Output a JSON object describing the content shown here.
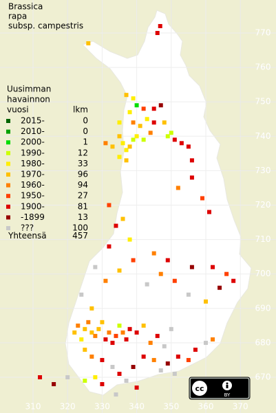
{
  "title": [
    "Brassica",
    "rapa",
    "subsp. campestris"
  ],
  "legend": {
    "header": [
      "Uusimman",
      "havainnon"
    ],
    "col_year": "vuosi",
    "col_count": "lkm",
    "rows": [
      {
        "label": "2015-",
        "count": 0,
        "color": "#006400"
      },
      {
        "label": "2010-",
        "count": 0,
        "color": "#00a000"
      },
      {
        "label": "2000-",
        "count": 1,
        "color": "#00dd00"
      },
      {
        "label": "1990-",
        "count": 12,
        "color": "#ccff00"
      },
      {
        "label": "1980-",
        "count": 33,
        "color": "#ffee00"
      },
      {
        "label": "1970-",
        "count": 96,
        "color": "#ffc000"
      },
      {
        "label": "1960-",
        "count": 94,
        "color": "#ff8000"
      },
      {
        "label": "1950-",
        "count": 27,
        "color": "#ff4000"
      },
      {
        "label": "1900-",
        "count": 81,
        "color": "#dd0000"
      },
      {
        "label": "-1899",
        "count": 13,
        "color": "#960000"
      },
      {
        "label": "???",
        "count": 100,
        "color": "#c8c8c8"
      }
    ],
    "total_label": "Yhteensä",
    "total": 457
  },
  "northing_ticks": [
    770,
    760,
    750,
    740,
    730,
    720,
    710,
    700,
    690,
    680,
    670
  ],
  "easting_ticks": [
    310,
    320,
    330,
    340,
    350,
    360,
    370
  ],
  "license": {
    "left": "cc",
    "right": "BY"
  },
  "points": [
    [
      326,
      767,
      5
    ],
    [
      346,
      770,
      8
    ],
    [
      346.8,
      772,
      8
    ],
    [
      337,
      752,
      5
    ],
    [
      339,
      751,
      4
    ],
    [
      340,
      749,
      2
    ],
    [
      338,
      747,
      4
    ],
    [
      342,
      748,
      7
    ],
    [
      345,
      748,
      8
    ],
    [
      347,
      749,
      9
    ],
    [
      335,
      744,
      4
    ],
    [
      339,
      744,
      6
    ],
    [
      341,
      743,
      5
    ],
    [
      343,
      745,
      4
    ],
    [
      345,
      744,
      8
    ],
    [
      335,
      740,
      5
    ],
    [
      336,
      738,
      4
    ],
    [
      337,
      736,
      4
    ],
    [
      338,
      737,
      5
    ],
    [
      339,
      739,
      3
    ],
    [
      340,
      740,
      4
    ],
    [
      342,
      739,
      3
    ],
    [
      335,
      734,
      4
    ],
    [
      337,
      733,
      5
    ],
    [
      344,
      741,
      6
    ],
    [
      349,
      740,
      3
    ],
    [
      350,
      741,
      3
    ],
    [
      351,
      739,
      8
    ],
    [
      353,
      738,
      8
    ],
    [
      355,
      737,
      8
    ],
    [
      356,
      733,
      8
    ],
    [
      348,
      744,
      5
    ],
    [
      333,
      737,
      5
    ],
    [
      331,
      738,
      6
    ],
    [
      352,
      725,
      6
    ],
    [
      356,
      728,
      8
    ],
    [
      359,
      722,
      7
    ],
    [
      361,
      718,
      8
    ],
    [
      332,
      720,
      7
    ],
    [
      334,
      714,
      8
    ],
    [
      336,
      716,
      5
    ],
    [
      332,
      708,
      8
    ],
    [
      338,
      710,
      4
    ],
    [
      345,
      706,
      6
    ],
    [
      349,
      704,
      8
    ],
    [
      356,
      702,
      9
    ],
    [
      362,
      702,
      8
    ],
    [
      364,
      696,
      9
    ],
    [
      366,
      700,
      7
    ],
    [
      368,
      698,
      8
    ],
    [
      360,
      692,
      5
    ],
    [
      355,
      694,
      10
    ],
    [
      351,
      698,
      7
    ],
    [
      347,
      700,
      6
    ],
    [
      343,
      697,
      10
    ],
    [
      339,
      704,
      7
    ],
    [
      335,
      701,
      5
    ],
    [
      331,
      698,
      6
    ],
    [
      328,
      702,
      10
    ],
    [
      324,
      694,
      10
    ],
    [
      327,
      690,
      5
    ],
    [
      322,
      683,
      5
    ],
    [
      323,
      685,
      6
    ],
    [
      324,
      681,
      4
    ],
    [
      325,
      684,
      5
    ],
    [
      326,
      686,
      6
    ],
    [
      327,
      683,
      5
    ],
    [
      328,
      682,
      6
    ],
    [
      329,
      684,
      5
    ],
    [
      330,
      686,
      5
    ],
    [
      331,
      681,
      8
    ],
    [
      332,
      683,
      6
    ],
    [
      333,
      680,
      8
    ],
    [
      334,
      682,
      7
    ],
    [
      335,
      685,
      3
    ],
    [
      336,
      683,
      6
    ],
    [
      337,
      681,
      8
    ],
    [
      338,
      684,
      8
    ],
    [
      340,
      683,
      8
    ],
    [
      342,
      685,
      5
    ],
    [
      344,
      680,
      6
    ],
    [
      346,
      682,
      8
    ],
    [
      348,
      679,
      10
    ],
    [
      350,
      684,
      10
    ],
    [
      325,
      678,
      5
    ],
    [
      327,
      676,
      6
    ],
    [
      330,
      675,
      8
    ],
    [
      333,
      673,
      10
    ],
    [
      335,
      671,
      8
    ],
    [
      337,
      669,
      10
    ],
    [
      339,
      673,
      9
    ],
    [
      342,
      676,
      8
    ],
    [
      345,
      675,
      6
    ],
    [
      347,
      672,
      10
    ],
    [
      349,
      674,
      9
    ],
    [
      352,
      676,
      8
    ],
    [
      355,
      675,
      7
    ],
    [
      357,
      678,
      8
    ],
    [
      360,
      680,
      10
    ],
    [
      362,
      681,
      6
    ],
    [
      351,
      671,
      10
    ],
    [
      330,
      668,
      8
    ],
    [
      328,
      670,
      4
    ],
    [
      325,
      669,
      3
    ],
    [
      320,
      670,
      10
    ],
    [
      312,
      670,
      8
    ],
    [
      316,
      668,
      9
    ],
    [
      334,
      665,
      10
    ],
    [
      340,
      667,
      8
    ]
  ]
}
